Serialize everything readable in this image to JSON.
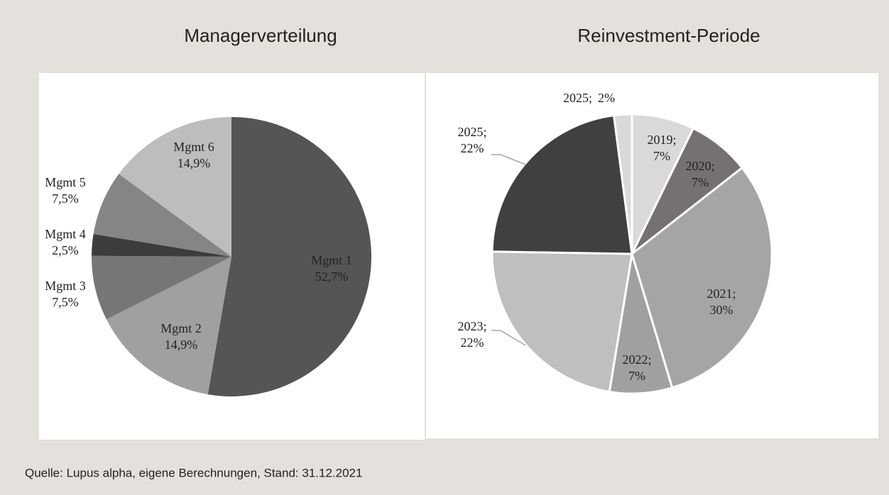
{
  "chart_data": [
    {
      "type": "pie",
      "title": "Managerverteilung",
      "categories": [
        "Mgmt 1",
        "Mgmt 2",
        "Mgmt 3",
        "Mgmt 4",
        "Mgmt 5",
        "Mgmt 6"
      ],
      "values": [
        52.7,
        14.9,
        7.5,
        2.5,
        7.5,
        14.9
      ],
      "value_labels": [
        "52,7%",
        "14,9%",
        "7,5%",
        "2,5%",
        "7,5%",
        "14,9%"
      ],
      "colors": [
        "#555555",
        "#a0a0a0",
        "#767676",
        "#3c3c3c",
        "#858585",
        "#bdbdbd"
      ]
    },
    {
      "type": "pie",
      "title": "Reinvestment-Periode",
      "categories": [
        "2019;",
        "2020;",
        "2021;",
        "2022;",
        "2023;",
        "2025;",
        "2025;"
      ],
      "values": [
        7,
        7,
        30,
        7,
        22,
        22,
        2
      ],
      "value_labels": [
        "7%",
        "7%",
        "30%",
        "7%",
        "22%",
        "22%",
        "2%"
      ],
      "colors": [
        "#d9d9d9",
        "#767171",
        "#a5a5a5",
        "#a0a0a0",
        "#bfbfbf",
        "#404040",
        "#d9d9d9"
      ]
    }
  ],
  "source": "Quelle: Lupus alpha, eigene Berechnungen, Stand: 31.12.2021"
}
